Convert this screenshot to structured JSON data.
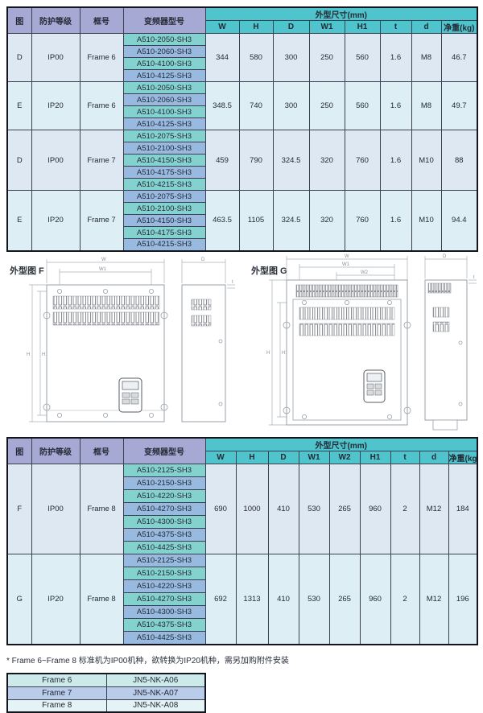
{
  "colors": {
    "header_purple": "#a7a9d5",
    "header_teal": "#4fc4cc",
    "model_teal": "#84d2cf",
    "model_blue": "#98b9e0",
    "row_group_a": "#dde8f3",
    "row_group_b": "#ddeff4",
    "accessory_row1": "#cdeaea",
    "accessory_row2": "#b9cce9",
    "accessory_row3": "#e4f3f5"
  },
  "table1": {
    "headers": {
      "fig": "图",
      "protection": "防护等级",
      "frame": "框号",
      "model": "变频器型号",
      "dims_group": "外型尺寸(mm)",
      "dims": [
        "W",
        "H",
        "D",
        "W1",
        "H1",
        "t",
        "d"
      ],
      "weight": "净重(kg)"
    },
    "groups": [
      {
        "fig": "D",
        "protection": "IP00",
        "frame": "Frame 6",
        "models": [
          "A510-2050-SH3",
          "A510-2060-SH3",
          "A510-4100-SH3",
          "A510-4125-SH3"
        ],
        "dims": [
          "344",
          "580",
          "300",
          "250",
          "560",
          "1.6",
          "M8"
        ],
        "weight": "46.7"
      },
      {
        "fig": "E",
        "protection": "IP20",
        "frame": "Frame 6",
        "models": [
          "A510-2050-SH3",
          "A510-2060-SH3",
          "A510-4100-SH3",
          "A510-4125-SH3"
        ],
        "dims": [
          "348.5",
          "740",
          "300",
          "250",
          "560",
          "1.6",
          "M8"
        ],
        "weight": "49.7"
      },
      {
        "fig": "D",
        "protection": "IP00",
        "frame": "Frame 7",
        "models": [
          "A510-2075-SH3",
          "A510-2100-SH3",
          "A510-4150-SH3",
          "A510-4175-SH3",
          "A510-4215-SH3"
        ],
        "dims": [
          "459",
          "790",
          "324.5",
          "320",
          "760",
          "1.6",
          "M10"
        ],
        "weight": "88"
      },
      {
        "fig": "E",
        "protection": "IP20",
        "frame": "Frame 7",
        "models": [
          "A510-2075-SH3",
          "A510-2100-SH3",
          "A510-4150-SH3",
          "A510-4175-SH3",
          "A510-4215-SH3"
        ],
        "dims": [
          "463.5",
          "1105",
          "324.5",
          "320",
          "760",
          "1.6",
          "M10"
        ],
        "weight": "94.4"
      }
    ]
  },
  "drawings": {
    "f_label": "外型图 F",
    "g_label": "外型图 G",
    "dim_labels": {
      "w": "W",
      "w1": "W1",
      "w2": "W2",
      "h": "H",
      "h1": "H1",
      "d": "D",
      "t": "t"
    }
  },
  "table2": {
    "headers": {
      "fig": "图",
      "protection": "防护等级",
      "frame": "框号",
      "model": "变频器型号",
      "dims_group": "外型尺寸(mm)",
      "dims": [
        "W",
        "H",
        "D",
        "W1",
        "W2",
        "H1",
        "t",
        "d"
      ],
      "weight": "净重(kg)"
    },
    "groups": [
      {
        "fig": "F",
        "protection": "IP00",
        "frame": "Frame 8",
        "models": [
          "A510-2125-SH3",
          "A510-2150-SH3",
          "A510-4220-SH3",
          "A510-4270-SH3",
          "A510-4300-SH3",
          "A510-4375-SH3",
          "A510-4425-SH3"
        ],
        "dims": [
          "690",
          "1000",
          "410",
          "530",
          "265",
          "960",
          "2",
          "M12"
        ],
        "weight": "184"
      },
      {
        "fig": "G",
        "protection": "IP20",
        "frame": "Frame 8",
        "models": [
          "A510-2125-SH3",
          "A510-2150-SH3",
          "A510-4220-SH3",
          "A510-4270-SH3",
          "A510-4300-SH3",
          "A510-4375-SH3",
          "A510-4425-SH3"
        ],
        "dims": [
          "692",
          "1313",
          "410",
          "530",
          "265",
          "960",
          "2",
          "M12"
        ],
        "weight": "196"
      }
    ]
  },
  "footnote": "* Frame 6~Frame 8 标准机为IP00机种，欲转换为IP20机种，需另加购附件安装",
  "accessory_table": {
    "rows": [
      [
        "Frame 6",
        "JN5-NK-A06"
      ],
      [
        "Frame 7",
        "JN5-NK-A07"
      ],
      [
        "Frame 8",
        "JN5-NK-A08"
      ]
    ]
  }
}
